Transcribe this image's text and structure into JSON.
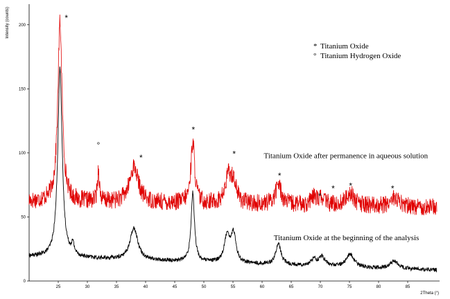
{
  "chart_data": {
    "type": "line",
    "xlabel": "2Theta (°)",
    "ylabel": "Intensity (counts)",
    "xlim": [
      20,
      90
    ],
    "ylim": [
      0,
      215
    ],
    "x_ticks": [
      25,
      30,
      35,
      40,
      45,
      50,
      55,
      60,
      65,
      70,
      75,
      80,
      85
    ],
    "y_ticks": [
      0,
      50,
      100,
      150,
      200
    ],
    "legend": {
      "position": "top-right",
      "entries": [
        {
          "symbol": "*",
          "label": "Titanium  Oxide"
        },
        {
          "symbol": "°",
          "label": "Titanium  Hydrogen  Oxide"
        }
      ]
    },
    "series": [
      {
        "name": "Titanium Oxide after permanence in aqueous solution",
        "color": "#e00000",
        "baseline": 62,
        "noise": 7,
        "peaks": [
          {
            "x": 25.3,
            "h": 140,
            "w": 0.45
          },
          {
            "x": 31.9,
            "h": 25,
            "w": 0.2
          },
          {
            "x": 38.0,
            "h": 28,
            "w": 0.9
          },
          {
            "x": 48.1,
            "h": 48,
            "w": 0.4
          },
          {
            "x": 54.2,
            "h": 20,
            "w": 0.6
          },
          {
            "x": 55.1,
            "h": 16,
            "w": 0.6
          },
          {
            "x": 62.8,
            "h": 16,
            "w": 0.6
          },
          {
            "x": 69.0,
            "h": 6,
            "w": 0.6
          },
          {
            "x": 70.3,
            "h": 5,
            "w": 0.6
          },
          {
            "x": 75.1,
            "h": 10,
            "w": 0.8
          },
          {
            "x": 82.7,
            "h": 7,
            "w": 0.8
          }
        ]
      },
      {
        "name": "Titanium Oxide at the beginning of the analysis",
        "color": "#000000",
        "baseline": 19,
        "noise": 1.6,
        "peaks": [
          {
            "x": 25.3,
            "h": 148,
            "w": 0.45
          },
          {
            "x": 27.5,
            "h": 8,
            "w": 0.3
          },
          {
            "x": 38.0,
            "h": 25,
            "w": 0.8
          },
          {
            "x": 48.1,
            "h": 54,
            "w": 0.35
          },
          {
            "x": 54.0,
            "h": 21,
            "w": 0.55
          },
          {
            "x": 55.1,
            "h": 22,
            "w": 0.5
          },
          {
            "x": 62.8,
            "h": 16,
            "w": 0.55
          },
          {
            "x": 68.9,
            "h": 5,
            "w": 0.6
          },
          {
            "x": 70.3,
            "h": 7,
            "w": 0.6
          },
          {
            "x": 75.1,
            "h": 10,
            "w": 0.8
          },
          {
            "x": 82.7,
            "h": 6,
            "w": 0.8
          }
        ]
      }
    ],
    "annotations": [
      {
        "text": "Titanium Oxide after permanence in aqueous solution",
        "x": 60.3,
        "y": 96
      },
      {
        "text": "Titanium  Oxide  at the beginning  of  the analysis",
        "x": 62.0,
        "y": 32
      }
    ],
    "markers": [
      {
        "symbol": "*",
        "x": 26.4,
        "y": 203
      },
      {
        "symbol": "°",
        "x": 31.9,
        "y": 104
      },
      {
        "symbol": "*",
        "x": 39.2,
        "y": 94
      },
      {
        "symbol": "*",
        "x": 48.2,
        "y": 116
      },
      {
        "symbol": "*",
        "x": 55.2,
        "y": 97
      },
      {
        "symbol": "*",
        "x": 63.0,
        "y": 80
      },
      {
        "symbol": "*",
        "x": 69.9,
        "y": 64
      },
      {
        "symbol": "*",
        "x": 72.2,
        "y": 70
      },
      {
        "symbol": "*",
        "x": 75.2,
        "y": 72
      },
      {
        "symbol": "*",
        "x": 82.4,
        "y": 70
      }
    ]
  }
}
